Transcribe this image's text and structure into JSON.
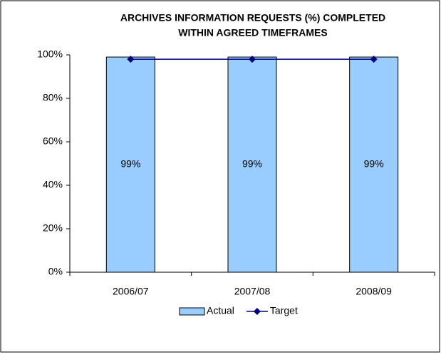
{
  "chart_data": {
    "type": "bar",
    "title": [
      "ARCHIVES INFORMATION REQUESTS (%) COMPLETED",
      "WITHIN AGREED TIMEFRAMES"
    ],
    "categories": [
      "2006/07",
      "2007/08",
      "2008/09"
    ],
    "series": [
      {
        "name": "Actual",
        "type": "bar",
        "color": "#99ccff",
        "values": [
          99,
          99,
          99
        ],
        "value_labels": [
          "99%",
          "99%",
          "99%"
        ]
      },
      {
        "name": "Target",
        "type": "line",
        "color": "#000080",
        "values": [
          98,
          98,
          98
        ]
      }
    ],
    "ylim": [
      0,
      100
    ],
    "yticks": [
      {
        "value": 0,
        "label": "0%"
      },
      {
        "value": 20,
        "label": "20%"
      },
      {
        "value": 40,
        "label": "40%"
      },
      {
        "value": 60,
        "label": "60%"
      },
      {
        "value": 80,
        "label": "80%"
      },
      {
        "value": 100,
        "label": "100%"
      }
    ],
    "grid": false,
    "legend": "bottom"
  }
}
